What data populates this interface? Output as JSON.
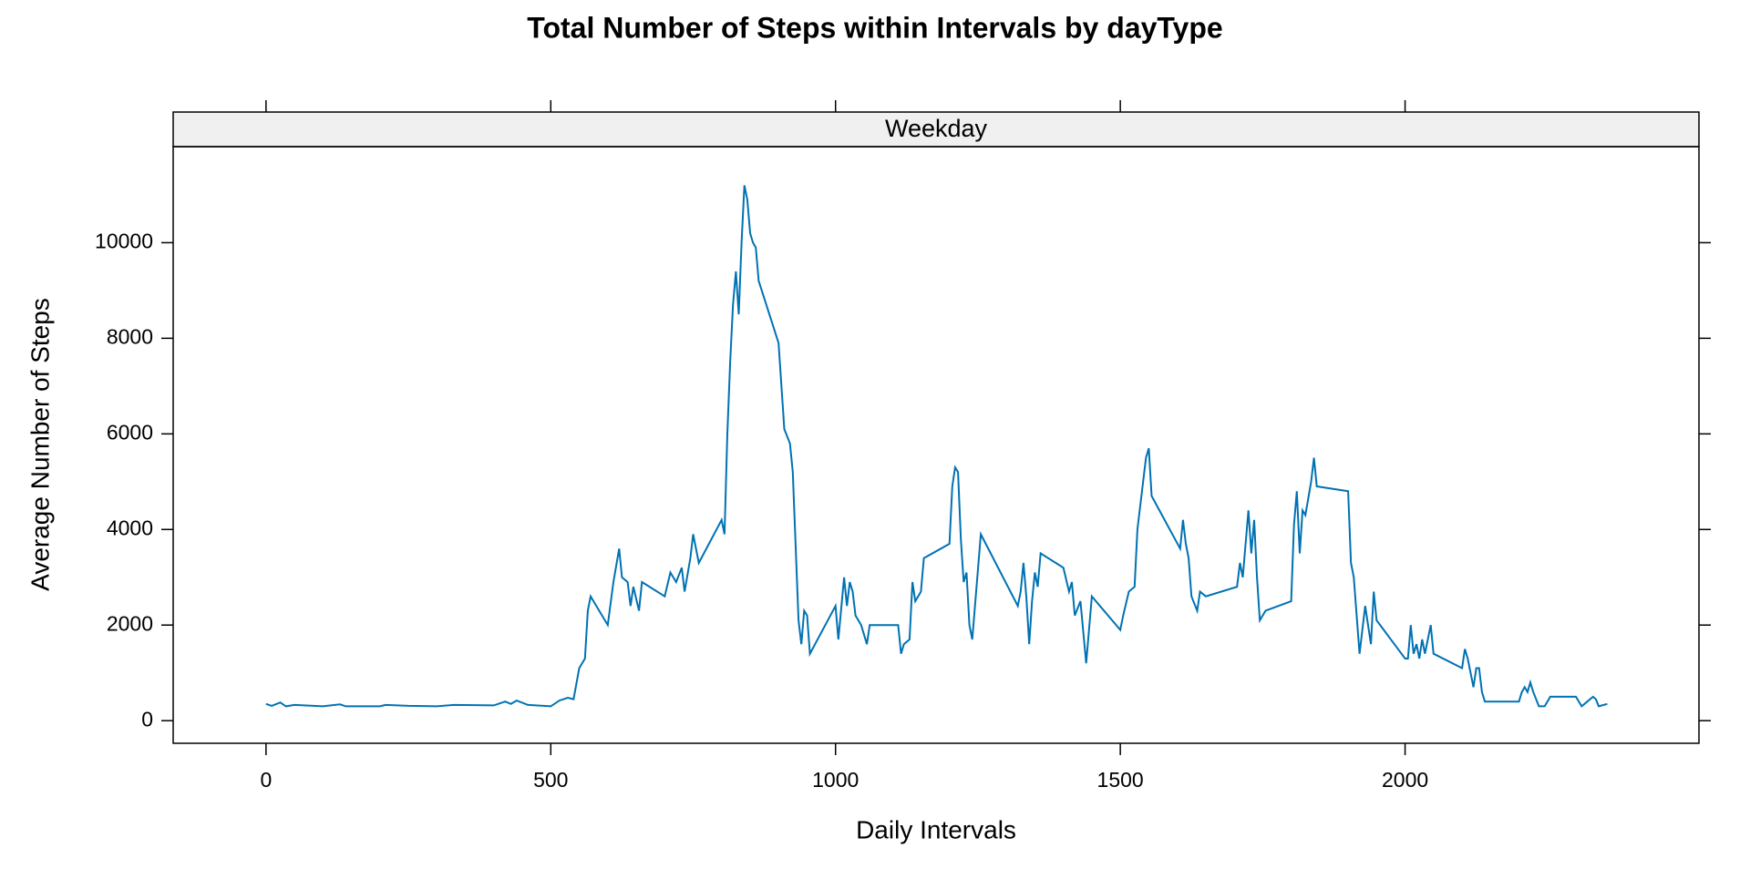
{
  "chart_data": {
    "type": "line",
    "title": "Total Number of Steps within Intervals by dayType",
    "panel": "Weekday",
    "x_label": "Daily Intervals",
    "y_label": "Average Number of Steps",
    "xlim": [
      -163,
      2516
    ],
    "ylim": [
      -473,
      12009
    ],
    "xticks": [
      0,
      500,
      1000,
      1500,
      2000
    ],
    "yticks": [
      0,
      2000,
      4000,
      6000,
      8000,
      10000
    ],
    "color": "#0072B2",
    "x": [
      0,
      10,
      25,
      35,
      50,
      100,
      130,
      140,
      200,
      210,
      250,
      300,
      330,
      400,
      420,
      430,
      440,
      460,
      500,
      515,
      530,
      540,
      550,
      560,
      565,
      570,
      600,
      610,
      620,
      625,
      635,
      640,
      645,
      655,
      660,
      700,
      710,
      720,
      730,
      735,
      745,
      750,
      760,
      800,
      805,
      810,
      815,
      820,
      825,
      830,
      835,
      840,
      845,
      850,
      855,
      860,
      865,
      900,
      910,
      920,
      925,
      935,
      940,
      945,
      950,
      955,
      1000,
      1005,
      1015,
      1020,
      1025,
      1030,
      1035,
      1045,
      1055,
      1060,
      1110,
      1115,
      1120,
      1130,
      1135,
      1140,
      1150,
      1155,
      1200,
      1205,
      1210,
      1215,
      1220,
      1225,
      1230,
      1235,
      1240,
      1255,
      1320,
      1325,
      1330,
      1335,
      1340,
      1345,
      1350,
      1355,
      1360,
      1400,
      1410,
      1415,
      1420,
      1430,
      1440,
      1450,
      1500,
      1505,
      1515,
      1525,
      1530,
      1545,
      1550,
      1555,
      1605,
      1610,
      1615,
      1620,
      1625,
      1635,
      1640,
      1650,
      1705,
      1710,
      1715,
      1725,
      1730,
      1735,
      1740,
      1745,
      1755,
      1800,
      1805,
      1810,
      1815,
      1820,
      1825,
      1835,
      1840,
      1845,
      1900,
      1905,
      1910,
      1920,
      1930,
      1940,
      1945,
      1950,
      2000,
      2005,
      2010,
      2015,
      2020,
      2025,
      2030,
      2035,
      2045,
      2050,
      2100,
      2105,
      2110,
      2120,
      2125,
      2130,
      2135,
      2140,
      2200,
      2205,
      2210,
      2215,
      2220,
      2225,
      2235,
      2245,
      2255,
      2300,
      2310,
      2320,
      2330,
      2335,
      2340,
      2355
    ],
    "values": [
      350,
      310,
      380,
      300,
      330,
      300,
      340,
      300,
      300,
      330,
      310,
      300,
      330,
      320,
      400,
      350,
      420,
      330,
      300,
      420,
      480,
      450,
      1100,
      1300,
      2300,
      2600,
      2000,
      2900,
      3600,
      3000,
      2900,
      2400,
      2800,
      2300,
      2900,
      2600,
      3100,
      2900,
      3200,
      2700,
      3400,
      3900,
      3300,
      4200,
      3900,
      6000,
      7500,
      8700,
      9400,
      8500,
      10000,
      11200,
      10900,
      10200,
      10000,
      9900,
      9200,
      7900,
      6100,
      5800,
      5200,
      2100,
      1600,
      2300,
      2200,
      1400,
      2400,
      1700,
      3000,
      2400,
      2900,
      2700,
      2200,
      2000,
      1600,
      2000,
      2000,
      1400,
      1600,
      1700,
      2900,
      2500,
      2700,
      3400,
      3700,
      4900,
      5300,
      5200,
      3800,
      2900,
      3100,
      2000,
      1700,
      3900,
      2400,
      2700,
      3300,
      2600,
      1600,
      2500,
      3100,
      2800,
      3500,
      3200,
      2700,
      2900,
      2200,
      2500,
      1200,
      2600,
      1900,
      2200,
      2700,
      2800,
      4000,
      5500,
      5700,
      4700,
      3600,
      4200,
      3700,
      3400,
      2600,
      2300,
      2700,
      2600,
      2800,
      3300,
      3000,
      4400,
      3500,
      4200,
      3000,
      2100,
      2300,
      2500,
      4100,
      4800,
      3500,
      4400,
      4300,
      5000,
      5500,
      4900,
      4800,
      3300,
      3000,
      1400,
      2400,
      1600,
      2700,
      2100,
      1300,
      1300,
      2000,
      1400,
      1600,
      1300,
      1700,
      1400,
      2000,
      1400,
      1100,
      1500,
      1300,
      700,
      1100,
      1100,
      600,
      400,
      400,
      600,
      700,
      600,
      800,
      600,
      300,
      300,
      500,
      500,
      300,
      400,
      500,
      450,
      300,
      350
    ]
  }
}
